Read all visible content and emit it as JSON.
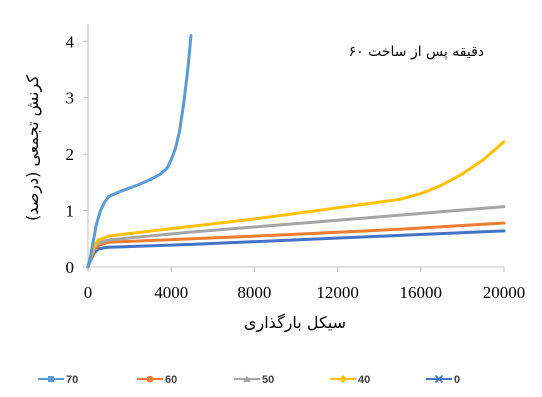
{
  "chart_data": {
    "type": "line",
    "annotation": "۶۰ دقیقه پس از ساخت",
    "xlabel": "سیکل بارگذاری",
    "ylabel": "کرنش تجمعی (درصد)",
    "xlim": [
      0,
      20000
    ],
    "ylim": [
      0,
      4.2
    ],
    "x_ticks": [
      0,
      4000,
      8000,
      12000,
      16000,
      20000
    ],
    "y_ticks": [
      0,
      1,
      2,
      3,
      4
    ],
    "grid": false,
    "legend_position": "bottom",
    "series": [
      {
        "name": "70",
        "color": "#5b9bd5",
        "marker": "square",
        "points": [
          [
            0,
            0
          ],
          [
            100,
            0.15
          ],
          [
            250,
            0.45
          ],
          [
            400,
            0.75
          ],
          [
            600,
            1.0
          ],
          [
            800,
            1.15
          ],
          [
            1000,
            1.25
          ],
          [
            1500,
            1.33
          ],
          [
            2000,
            1.4
          ],
          [
            2500,
            1.47
          ],
          [
            3000,
            1.55
          ],
          [
            3500,
            1.65
          ],
          [
            3800,
            1.75
          ],
          [
            4000,
            1.9
          ],
          [
            4200,
            2.1
          ],
          [
            4400,
            2.4
          ],
          [
            4600,
            2.9
          ],
          [
            4800,
            3.5
          ],
          [
            4950,
            4.1
          ]
        ]
      },
      {
        "name": "60",
        "color": "#ed7d31",
        "marker": "circle",
        "points": [
          [
            0,
            0
          ],
          [
            100,
            0.12
          ],
          [
            300,
            0.3
          ],
          [
            500,
            0.38
          ],
          [
            800,
            0.42
          ],
          [
            1000,
            0.44
          ],
          [
            5000,
            0.5
          ],
          [
            10000,
            0.58
          ],
          [
            15000,
            0.67
          ],
          [
            20000,
            0.78
          ]
        ]
      },
      {
        "name": "50",
        "color": "#a5a5a5",
        "marker": "triangle",
        "points": [
          [
            0,
            0
          ],
          [
            100,
            0.14
          ],
          [
            300,
            0.35
          ],
          [
            500,
            0.42
          ],
          [
            800,
            0.46
          ],
          [
            1000,
            0.48
          ],
          [
            5000,
            0.62
          ],
          [
            10000,
            0.77
          ],
          [
            15000,
            0.92
          ],
          [
            20000,
            1.07
          ]
        ]
      },
      {
        "name": "40",
        "color": "#ffc000",
        "marker": "diamond",
        "points": [
          [
            0,
            0
          ],
          [
            100,
            0.15
          ],
          [
            300,
            0.38
          ],
          [
            500,
            0.48
          ],
          [
            800,
            0.52
          ],
          [
            1000,
            0.55
          ],
          [
            4000,
            0.68
          ],
          [
            8000,
            0.85
          ],
          [
            12000,
            1.05
          ],
          [
            14000,
            1.15
          ],
          [
            15000,
            1.2
          ],
          [
            16000,
            1.3
          ],
          [
            17000,
            1.45
          ],
          [
            18000,
            1.65
          ],
          [
            19000,
            1.9
          ],
          [
            20000,
            2.22
          ]
        ]
      },
      {
        "name": "0",
        "color": "#4472c4",
        "marker": "x",
        "points": [
          [
            0,
            0
          ],
          [
            100,
            0.1
          ],
          [
            300,
            0.25
          ],
          [
            500,
            0.32
          ],
          [
            800,
            0.34
          ],
          [
            1000,
            0.35
          ],
          [
            5000,
            0.4
          ],
          [
            10000,
            0.48
          ],
          [
            15000,
            0.56
          ],
          [
            20000,
            0.64
          ]
        ]
      }
    ]
  }
}
